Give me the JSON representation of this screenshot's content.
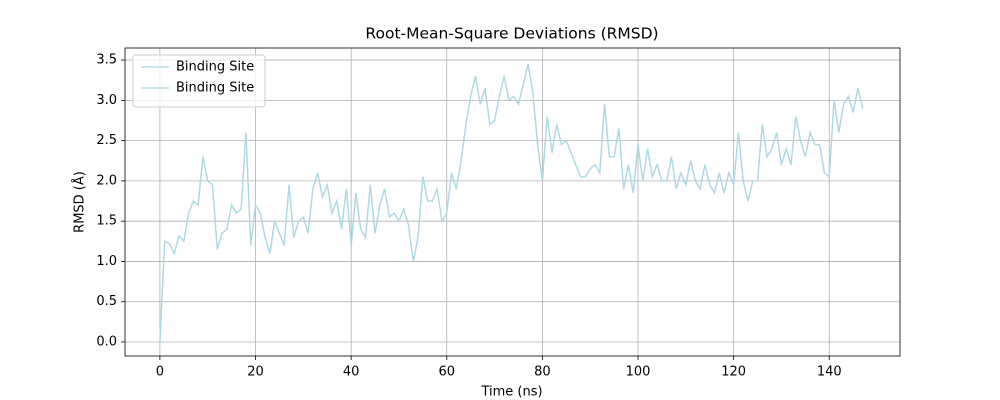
{
  "chart_data": {
    "type": "line",
    "title": "Root-Mean-Square Deviations (RMSD)",
    "x_label": "Time (ns)",
    "y_label": "RMSD (Å)",
    "x": [
      0,
      1,
      2,
      3,
      4,
      5,
      6,
      7,
      8,
      9,
      10,
      11,
      12,
      13,
      14,
      15,
      16,
      17,
      18,
      19,
      20,
      21,
      22,
      23,
      24,
      25,
      26,
      27,
      28,
      29,
      30,
      31,
      32,
      33,
      34,
      35,
      36,
      37,
      38,
      39,
      40,
      41,
      42,
      43,
      44,
      45,
      46,
      47,
      48,
      49,
      50,
      51,
      52,
      53,
      54,
      55,
      56,
      57,
      58,
      59,
      60,
      61,
      62,
      63,
      64,
      65,
      66,
      67,
      68,
      69,
      70,
      71,
      72,
      73,
      74,
      75,
      76,
      77,
      78,
      79,
      80,
      81,
      82,
      83,
      84,
      85,
      86,
      87,
      88,
      89,
      90,
      91,
      92,
      93,
      94,
      95,
      96,
      97,
      98,
      99,
      100,
      101,
      102,
      103,
      104,
      105,
      106,
      107,
      108,
      109,
      110,
      111,
      112,
      113,
      114,
      115,
      116,
      117,
      118,
      119,
      120,
      121,
      122,
      123,
      124,
      125,
      126,
      127,
      128,
      129,
      130,
      131,
      132,
      133,
      134,
      135,
      136,
      137,
      138,
      139,
      140,
      141,
      142,
      143,
      144,
      145,
      146,
      147
    ],
    "series": [
      {
        "name": "Binding Site",
        "color": "#add8e6",
        "values": [
          0.0,
          1.25,
          1.22,
          1.1,
          1.32,
          1.25,
          1.6,
          1.75,
          1.7,
          2.3,
          2.0,
          1.95,
          1.15,
          1.35,
          1.4,
          1.7,
          1.6,
          1.65,
          2.6,
          1.2,
          1.7,
          1.6,
          1.3,
          1.1,
          1.5,
          1.35,
          1.2,
          1.95,
          1.3,
          1.5,
          1.55,
          1.35,
          1.9,
          2.1,
          1.8,
          1.95,
          1.6,
          1.75,
          1.4,
          1.9,
          1.2,
          1.85,
          1.4,
          1.3,
          1.95,
          1.35,
          1.7,
          1.9,
          1.55,
          1.6,
          1.5,
          1.65,
          1.45,
          1.0,
          1.3,
          2.05,
          1.75,
          1.75,
          1.9,
          1.5,
          1.6,
          2.1,
          1.9,
          2.25,
          2.7,
          3.05,
          3.3,
          2.95,
          3.15,
          2.7,
          2.75,
          3.05,
          3.3,
          3.0,
          3.05,
          2.95,
          3.2,
          3.45,
          3.1,
          2.45,
          2.0,
          2.8,
          2.35,
          2.7,
          2.45,
          2.5,
          2.35,
          2.2,
          2.05,
          2.05,
          2.15,
          2.2,
          2.1,
          2.95,
          2.3,
          2.3,
          2.65,
          1.9,
          2.2,
          1.85,
          2.45,
          2.0,
          2.4,
          2.05,
          2.2,
          2.0,
          2.0,
          2.3,
          1.9,
          2.1,
          1.95,
          2.25,
          2.0,
          1.9,
          2.2,
          1.95,
          1.85,
          2.1,
          1.85,
          2.1,
          1.95,
          2.6,
          2.0,
          1.75,
          2.0,
          2.0,
          2.7,
          2.3,
          2.4,
          2.6,
          2.2,
          2.4,
          2.2,
          2.8,
          2.5,
          2.3,
          2.6,
          2.45,
          2.45,
          2.1,
          2.05,
          3.0,
          2.6,
          2.95,
          3.05,
          2.85,
          3.15,
          2.9
        ]
      },
      {
        "name": "Binding Site",
        "color": "#add8e6",
        "values": [
          0.0,
          1.25,
          1.22,
          1.1,
          1.32,
          1.25,
          1.6,
          1.75,
          1.7,
          2.3,
          2.0,
          1.95,
          1.15,
          1.35,
          1.4,
          1.7,
          1.6,
          1.65,
          2.6,
          1.2,
          1.7,
          1.6,
          1.3,
          1.1,
          1.5,
          1.35,
          1.2,
          1.95,
          1.3,
          1.5,
          1.55,
          1.35,
          1.9,
          2.1,
          1.8,
          1.95,
          1.6,
          1.75,
          1.4,
          1.9,
          1.2,
          1.85,
          1.4,
          1.3,
          1.95,
          1.35,
          1.7,
          1.9,
          1.55,
          1.6,
          1.5,
          1.65,
          1.45,
          1.0,
          1.3,
          2.05,
          1.75,
          1.75,
          1.9,
          1.5,
          1.6,
          2.1,
          1.9,
          2.25,
          2.7,
          3.05,
          3.3,
          2.95,
          3.15,
          2.7,
          2.75,
          3.05,
          3.3,
          3.0,
          3.05,
          2.95,
          3.2,
          3.45,
          3.1,
          2.45,
          2.0,
          2.8,
          2.35,
          2.7,
          2.45,
          2.5,
          2.35,
          2.2,
          2.05,
          2.05,
          2.15,
          2.2,
          2.1,
          2.95,
          2.3,
          2.3,
          2.65,
          1.9,
          2.2,
          1.85,
          2.45,
          2.0,
          2.4,
          2.05,
          2.2,
          2.0,
          2.0,
          2.3,
          1.9,
          2.1,
          1.95,
          2.25,
          2.0,
          1.9,
          2.2,
          1.95,
          1.85,
          2.1,
          1.85,
          2.1,
          1.95,
          2.6,
          2.0,
          1.75,
          2.0,
          2.0,
          2.7,
          2.3,
          2.4,
          2.6,
          2.2,
          2.4,
          2.2,
          2.8,
          2.5,
          2.3,
          2.6,
          2.45,
          2.45,
          2.1,
          2.05,
          3.0,
          2.6,
          2.95,
          3.05,
          2.85,
          3.15,
          2.9
        ]
      }
    ],
    "xlim": [
      -7.3,
      154.8
    ],
    "ylim": [
      -0.174,
      3.65
    ],
    "xticks": [
      0,
      20,
      40,
      60,
      80,
      100,
      120,
      140
    ],
    "yticks": [
      {
        "value": 0,
        "label": "0.0"
      },
      0.5,
      {
        "value": 1,
        "label": "1.0"
      },
      1.5,
      {
        "value": 2,
        "label": "2.0"
      },
      2.5,
      {
        "value": 3,
        "label": "3.0"
      },
      3.5
    ],
    "grid": true,
    "legend": "upper-left"
  }
}
